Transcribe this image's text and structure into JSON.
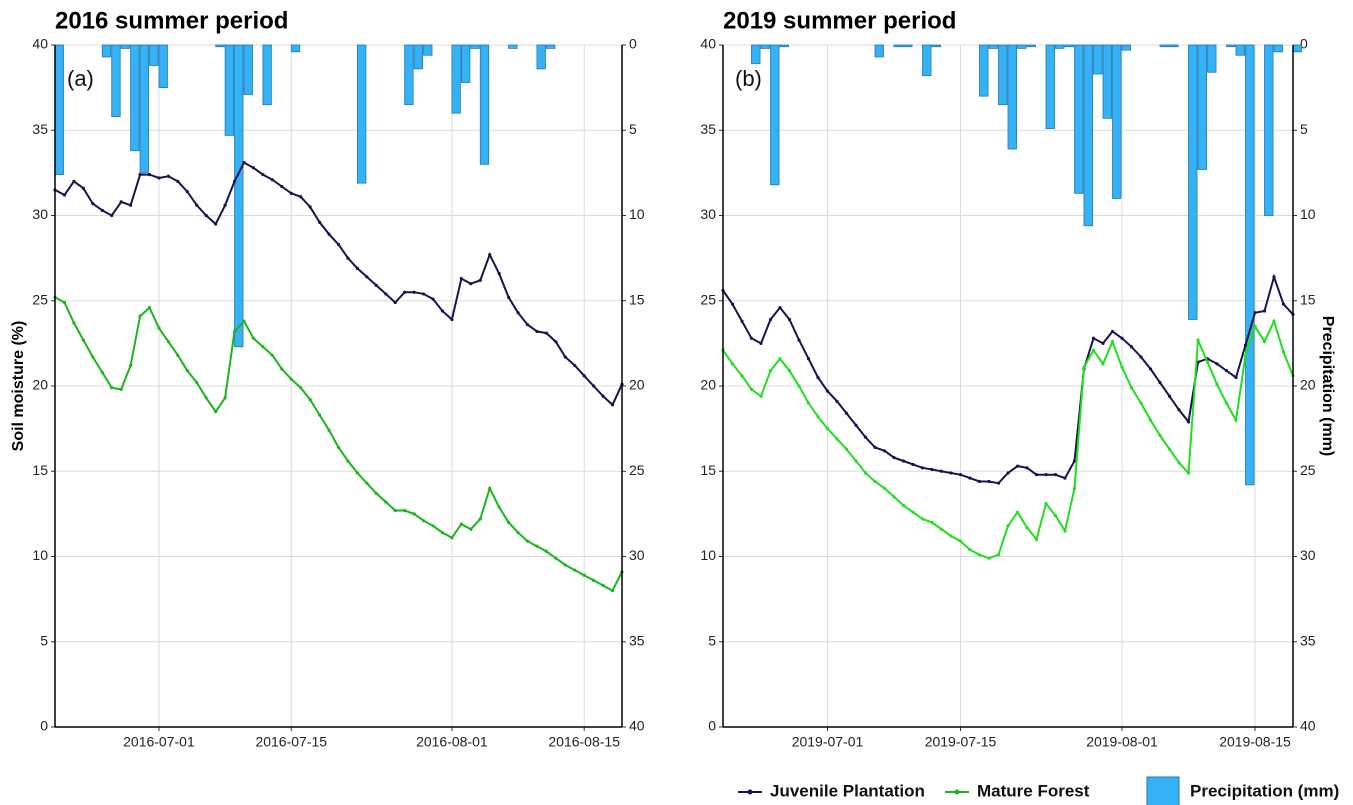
{
  "chart_data": [
    {
      "type": "line_bar",
      "title": "2016 summer period",
      "annotation": "(a)",
      "y_label": "Soil moisture (%)",
      "x": [
        "2016-06-20",
        "2016-06-21",
        "2016-06-22",
        "2016-06-23",
        "2016-06-24",
        "2016-06-25",
        "2016-06-26",
        "2016-06-27",
        "2016-06-28",
        "2016-06-29",
        "2016-06-30",
        "2016-07-01",
        "2016-07-02",
        "2016-07-03",
        "2016-07-04",
        "2016-07-05",
        "2016-07-06",
        "2016-07-07",
        "2016-07-08",
        "2016-07-09",
        "2016-07-10",
        "2016-07-11",
        "2016-07-12",
        "2016-07-13",
        "2016-07-14",
        "2016-07-15",
        "2016-07-16",
        "2016-07-17",
        "2016-07-18",
        "2016-07-19",
        "2016-07-20",
        "2016-07-21",
        "2016-07-22",
        "2016-07-23",
        "2016-07-24",
        "2016-07-25",
        "2016-07-26",
        "2016-07-27",
        "2016-07-28",
        "2016-07-29",
        "2016-07-30",
        "2016-07-31",
        "2016-08-01",
        "2016-08-02",
        "2016-08-03",
        "2016-08-04",
        "2016-08-05",
        "2016-08-06",
        "2016-08-07",
        "2016-08-08",
        "2016-08-09",
        "2016-08-10",
        "2016-08-11",
        "2016-08-12",
        "2016-08-13",
        "2016-08-14",
        "2016-08-15",
        "2016-08-16",
        "2016-08-17",
        "2016-08-18",
        "2016-08-19"
      ],
      "xlim": [
        "2016-06-20",
        "2016-08-19"
      ],
      "xticks": [
        "2016-07-01",
        "2016-07-15",
        "2016-08-01",
        "2016-08-15"
      ],
      "ylim": [
        0,
        40
      ],
      "yticks": [
        0,
        5,
        10,
        15,
        20,
        25,
        30,
        35,
        40
      ],
      "y2lim": [
        0,
        40
      ],
      "y2ticks": [
        0,
        5,
        10,
        15,
        20,
        25,
        30,
        35,
        40
      ],
      "y2_inverted": true,
      "grid": true,
      "series": [
        {
          "name": "Juvenile Plantation",
          "type": "line",
          "color": "#15154f",
          "values": [
            31.5,
            31.2,
            32.0,
            31.6,
            30.7,
            30.3,
            30.0,
            30.8,
            30.6,
            32.4,
            32.4,
            32.2,
            32.3,
            32.0,
            31.4,
            30.6,
            30.0,
            29.5,
            30.6,
            32.0,
            33.1,
            32.8,
            32.4,
            32.1,
            31.7,
            31.3,
            31.1,
            30.5,
            29.6,
            28.9,
            28.3,
            27.5,
            26.9,
            26.4,
            25.9,
            25.4,
            24.9,
            25.5,
            25.5,
            25.4,
            25.1,
            24.4,
            23.9,
            26.3,
            26.0,
            26.2,
            27.7,
            26.6,
            25.2,
            24.3,
            23.6,
            23.2,
            23.1,
            22.6,
            21.7,
            21.2,
            20.6,
            20.0,
            19.4,
            18.9,
            20.1
          ]
        },
        {
          "name": "Mature Forest",
          "type": "line",
          "color": "#1cb51c",
          "values": [
            25.2,
            24.9,
            23.7,
            22.7,
            21.7,
            20.8,
            19.9,
            19.8,
            21.2,
            24.1,
            24.6,
            23.4,
            22.6,
            21.8,
            20.9,
            20.2,
            19.3,
            18.5,
            19.3,
            23.2,
            23.8,
            22.8,
            22.3,
            21.8,
            21.0,
            20.4,
            19.9,
            19.2,
            18.3,
            17.4,
            16.4,
            15.6,
            14.9,
            14.3,
            13.7,
            13.2,
            12.7,
            12.7,
            12.5,
            12.1,
            11.8,
            11.4,
            11.1,
            11.9,
            11.6,
            12.2,
            14.0,
            12.9,
            12.0,
            11.4,
            10.9,
            10.6,
            10.3,
            9.9,
            9.5,
            9.2,
            8.9,
            8.6,
            8.3,
            8.0,
            9.1
          ]
        },
        {
          "name": "Precipitation (mm)",
          "type": "bar",
          "axis": "y2",
          "color": "#35b2f5",
          "values": [
            7.6,
            0,
            0,
            0,
            0,
            0.7,
            4.2,
            0.2,
            6.2,
            7.5,
            1.2,
            2.5,
            0,
            0,
            0,
            0,
            0,
            0.1,
            5.3,
            17.7,
            2.9,
            0,
            3.5,
            0,
            0,
            0.4,
            0,
            0,
            0,
            0,
            0,
            0,
            8.1,
            0,
            0,
            0,
            0,
            3.5,
            1.4,
            0.6,
            0,
            0,
            4.0,
            2.2,
            0.2,
            7.0,
            0,
            0,
            0.2,
            0,
            0,
            1.4,
            0.2,
            0,
            0,
            0,
            0,
            0,
            0,
            0,
            0
          ]
        }
      ]
    },
    {
      "type": "line_bar",
      "title": "2019 summer period",
      "annotation": "(b)",
      "y2_label": "Precipitation (mm)",
      "x": [
        "2019-06-20",
        "2019-06-21",
        "2019-06-22",
        "2019-06-23",
        "2019-06-24",
        "2019-06-25",
        "2019-06-26",
        "2019-06-27",
        "2019-06-28",
        "2019-06-29",
        "2019-06-30",
        "2019-07-01",
        "2019-07-02",
        "2019-07-03",
        "2019-07-04",
        "2019-07-05",
        "2019-07-06",
        "2019-07-07",
        "2019-07-08",
        "2019-07-09",
        "2019-07-10",
        "2019-07-11",
        "2019-07-12",
        "2019-07-13",
        "2019-07-14",
        "2019-07-15",
        "2019-07-16",
        "2019-07-17",
        "2019-07-18",
        "2019-07-19",
        "2019-07-20",
        "2019-07-21",
        "2019-07-22",
        "2019-07-23",
        "2019-07-24",
        "2019-07-25",
        "2019-07-26",
        "2019-07-27",
        "2019-07-28",
        "2019-07-29",
        "2019-07-30",
        "2019-07-31",
        "2019-08-01",
        "2019-08-02",
        "2019-08-03",
        "2019-08-04",
        "2019-08-05",
        "2019-08-06",
        "2019-08-07",
        "2019-08-08",
        "2019-08-09",
        "2019-08-10",
        "2019-08-11",
        "2019-08-12",
        "2019-08-13",
        "2019-08-14",
        "2019-08-15",
        "2019-08-16",
        "2019-08-17",
        "2019-08-18",
        "2019-08-19"
      ],
      "xlim": [
        "2019-06-20",
        "2019-08-19"
      ],
      "xticks": [
        "2019-07-01",
        "2019-07-15",
        "2019-08-01",
        "2019-08-15"
      ],
      "ylim": [
        0,
        40
      ],
      "yticks": [
        0,
        5,
        10,
        15,
        20,
        25,
        30,
        35,
        40
      ],
      "y2lim": [
        0,
        40
      ],
      "y2ticks": [
        0,
        5,
        10,
        15,
        20,
        25,
        30,
        35,
        40
      ],
      "y2_inverted": true,
      "grid": true,
      "series": [
        {
          "type": "line",
          "color": "#15154f",
          "values": [
            25.6,
            24.8,
            23.8,
            22.8,
            22.5,
            23.9,
            24.6,
            23.9,
            22.7,
            21.6,
            20.5,
            19.7,
            19.1,
            18.4,
            17.7,
            17.0,
            16.4,
            16.2,
            15.8,
            15.6,
            15.4,
            15.2,
            15.1,
            15.0,
            14.9,
            14.8,
            14.6,
            14.4,
            14.4,
            14.3,
            14.9,
            15.3,
            15.2,
            14.8,
            14.8,
            14.8,
            14.6,
            15.6,
            21.0,
            22.8,
            22.5,
            23.2,
            22.8,
            22.3,
            21.7,
            21.0,
            20.2,
            19.4,
            18.6,
            17.9,
            21.4,
            21.6,
            21.3,
            20.9,
            20.5,
            22.4,
            24.3,
            24.4,
            26.4,
            24.8,
            24.2
          ]
        },
        {
          "type": "line",
          "color": "#22dd22",
          "values": [
            22.1,
            21.3,
            20.6,
            19.8,
            19.4,
            20.9,
            21.6,
            20.9,
            20.0,
            19.0,
            18.2,
            17.5,
            16.9,
            16.3,
            15.6,
            14.9,
            14.4,
            14.0,
            13.5,
            13.0,
            12.6,
            12.2,
            12.0,
            11.6,
            11.2,
            10.9,
            10.4,
            10.1,
            9.9,
            10.1,
            11.8,
            12.6,
            11.7,
            11.0,
            13.1,
            12.4,
            11.5,
            14.0,
            21.1,
            22.1,
            21.3,
            22.6,
            21.1,
            19.9,
            19.0,
            18.0,
            17.1,
            16.3,
            15.5,
            14.9,
            22.7,
            21.4,
            20.1,
            19.0,
            18.0,
            21.8,
            23.5,
            22.6,
            23.8,
            22.0,
            20.6
          ]
        },
        {
          "type": "bar",
          "axis": "y2",
          "color": "#35b2f5",
          "values": [
            0,
            0,
            0,
            1.1,
            0.2,
            8.2,
            0.1,
            0,
            0,
            0,
            0,
            0,
            0,
            0,
            0,
            0,
            0.7,
            0,
            0.1,
            0.1,
            0,
            1.8,
            0.1,
            0,
            0,
            0,
            0,
            3.0,
            0.2,
            3.5,
            6.1,
            0.2,
            0.1,
            0,
            4.9,
            0.2,
            0.1,
            8.7,
            10.6,
            1.7,
            4.3,
            9.0,
            0.3,
            0,
            0,
            0,
            0.1,
            0.1,
            0,
            16.1,
            7.3,
            1.6,
            0,
            0.1,
            0.6,
            25.8,
            0,
            10.0,
            0.4,
            0,
            0.4
          ]
        }
      ]
    }
  ]
}
